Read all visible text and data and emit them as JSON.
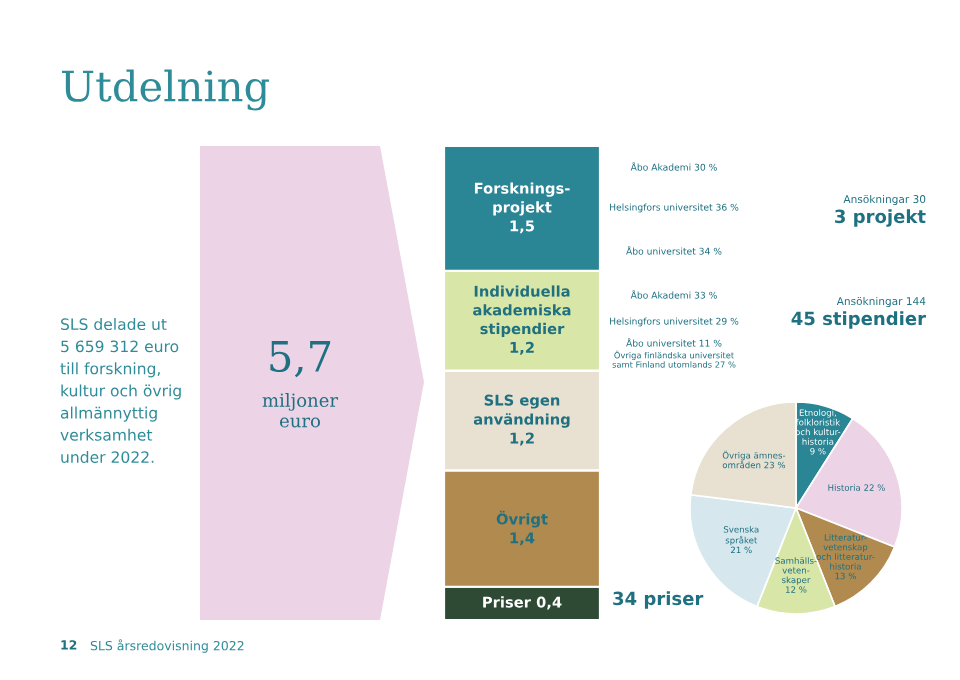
{
  "chart_data": [
    {
      "type": "other",
      "title": "Utdelning",
      "annotations": [
        "SLS delade ut\n5 659 312 euro\ntill forskning,\nkultur och övrig\nallmännyttig\nverksamhet\nunder 2022.",
        "5,7",
        "miljoner\neuro",
        "12",
        "SLS årsredovisning 2022"
      ]
    },
    {
      "type": "bar",
      "stacked": true,
      "categories": [
        null
      ],
      "series": [
        {
          "name": "Priser",
          "color": "#2f4a34",
          "values": [
            0.4
          ],
          "value_labels": [
            "0,4"
          ]
        },
        {
          "name": "Övrigt",
          "color": "#b08a4e",
          "values": [
            1.4
          ],
          "value_labels": [
            "1,4"
          ]
        },
        {
          "name": "SLS egen\nanvändning",
          "color": "#e8e0d0",
          "values": [
            1.2
          ],
          "value_labels": [
            "1,2"
          ]
        },
        {
          "name": "Individuella\nakademiska\nstipendier",
          "color": "#d8e6a8",
          "values": [
            1.2
          ],
          "value_labels": [
            "1,2"
          ]
        },
        {
          "name": "Forsknings-\nprojekt",
          "color": "#2a8595",
          "values": [
            1.5
          ],
          "value_labels": [
            "1,5"
          ]
        }
      ],
      "annotations": [
        "Åbo Akademi 30 %",
        "Helsingfors universitet 36 %",
        "Åbo universitet 34 %",
        "Åbo Akademi 33 %",
        "Helsingfors universitet 29 %",
        "Åbo universitet 11 %",
        "Övriga finländska universitet\nsamt Finland utomlands 27 %",
        "Ansökningar 30",
        "3 projekt",
        "Ansökningar 144",
        "45 stipendier",
        "34 priser"
      ]
    },
    {
      "type": "pie",
      "categories": [
        "Etnologi,\nfolkloristik\noch kultur-\nhistoria\n9 %",
        "Historia 22 %",
        "Litteratur-\nvetenskap\noch litteratur-\nhistoria\n13 %",
        "Samhälls-\nveten-\nskaper\n12 %",
        "Svenska\nspråket\n21 %",
        "Övriga ämnes-\nområden 23 %"
      ],
      "values": [
        9,
        22,
        13,
        12,
        21,
        23
      ],
      "colors": [
        "#2a8595",
        "#ecd3e6",
        "#b08a4e",
        "#d8e6a8",
        "#d6e8ee",
        "#e8e0d0"
      ]
    }
  ]
}
